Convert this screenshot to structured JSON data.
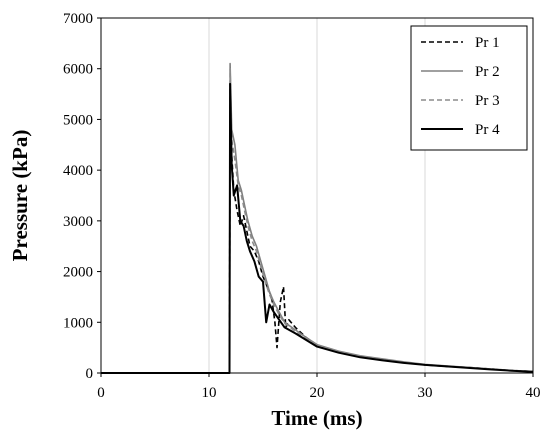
{
  "chart_data": {
    "type": "line",
    "xlabel": "Time (ms)",
    "ylabel": "Pressure (kPa)",
    "xlim": [
      0,
      40
    ],
    "ylim": [
      0,
      7000
    ],
    "xticks": [
      0,
      10,
      20,
      30,
      40
    ],
    "yticks": [
      0,
      1000,
      2000,
      3000,
      4000,
      5000,
      6000,
      7000
    ],
    "xtick_labels": [
      "0",
      "10",
      "20",
      "30",
      "40"
    ],
    "ytick_labels": [
      "0",
      "1000",
      "2000",
      "3000",
      "4000",
      "5000",
      "6000",
      "7000"
    ],
    "grid": "vertical",
    "legend_position": "top-right",
    "series": [
      {
        "name": "Pr 1",
        "color": "#000000",
        "dash": "dashed",
        "x": [
          0,
          11.9,
          11.95,
          12.1,
          12.3,
          12.6,
          12.9,
          13.2,
          13.5,
          13.8,
          14.2,
          14.6,
          15.0,
          15.4,
          15.8,
          16.1,
          16.3,
          16.6,
          16.9,
          17.1,
          17.4,
          18.0,
          19.0,
          20.0,
          22.0,
          24.0,
          26.0,
          28.0,
          30.0,
          32.0,
          34.0,
          36.0,
          38.0,
          40.0
        ],
        "values": [
          0,
          0,
          5600,
          4300,
          3600,
          3200,
          2900,
          3100,
          2800,
          2500,
          2400,
          2200,
          1900,
          1700,
          1500,
          1000,
          500,
          1400,
          1700,
          900,
          1050,
          900,
          700,
          550,
          420,
          330,
          270,
          210,
          160,
          130,
          110,
          80,
          50,
          30
        ]
      },
      {
        "name": "Pr 2",
        "color": "#808080",
        "dash": "solid",
        "x": [
          0,
          11.9,
          11.95,
          12.1,
          12.4,
          12.7,
          13.0,
          13.3,
          13.6,
          14.0,
          14.4,
          14.8,
          15.2,
          15.6,
          16.0,
          16.5,
          17.0,
          18.0,
          19.0,
          20.0,
          22.0,
          24.0,
          26.0,
          28.0,
          30.0,
          32.0,
          34.0,
          36.0,
          38.0,
          40.0
        ],
        "values": [
          0,
          0,
          6100,
          4800,
          4500,
          3800,
          3600,
          3300,
          3000,
          2700,
          2500,
          2200,
          1900,
          1600,
          1400,
          1200,
          1000,
          850,
          700,
          560,
          430,
          340,
          280,
          220,
          170,
          140,
          110,
          80,
          50,
          30
        ]
      },
      {
        "name": "Pr 3",
        "color": "#8c8c8c",
        "dash": "dashed",
        "x": [
          0,
          11.9,
          11.95,
          12.1,
          12.4,
          12.7,
          13.0,
          13.3,
          13.6,
          14.0,
          14.4,
          14.8,
          15.2,
          15.6,
          16.0,
          16.5,
          17.0,
          18.0,
          19.0,
          20.0,
          22.0,
          24.0,
          26.0,
          28.0,
          30.0,
          32.0,
          34.0,
          36.0,
          38.0,
          40.0
        ],
        "values": [
          0,
          0,
          6000,
          4600,
          4200,
          3700,
          3500,
          3200,
          2900,
          2600,
          2400,
          2100,
          1800,
          1550,
          1350,
          1150,
          980,
          820,
          680,
          550,
          420,
          330,
          270,
          210,
          165,
          135,
          105,
          75,
          50,
          30
        ]
      },
      {
        "name": "Pr 4",
        "color": "#000000",
        "dash": "solid",
        "x": [
          0,
          11.9,
          11.95,
          12.1,
          12.3,
          12.6,
          12.9,
          13.2,
          13.5,
          13.8,
          14.2,
          14.6,
          15.0,
          15.3,
          15.6,
          16.0,
          16.5,
          17.0,
          18.0,
          19.0,
          20.0,
          22.0,
          24.0,
          26.0,
          28.0,
          30.0,
          32.0,
          34.0,
          36.0,
          38.0,
          40.0
        ],
        "values": [
          0,
          0,
          5700,
          4100,
          3500,
          3700,
          3000,
          2900,
          2600,
          2400,
          2200,
          1900,
          1800,
          1000,
          1350,
          1200,
          1050,
          900,
          780,
          650,
          520,
          400,
          310,
          250,
          200,
          160,
          130,
          100,
          70,
          45,
          25
        ]
      }
    ]
  }
}
